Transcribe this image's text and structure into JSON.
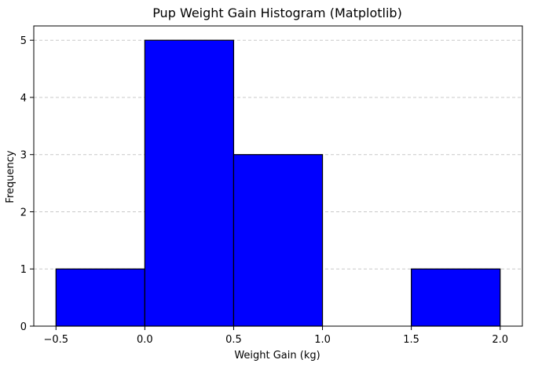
{
  "chart_data": {
    "type": "bar",
    "title": "Pup Weight Gain Histogram (Matplotlib)",
    "xlabel": "Weight Gain (kg)",
    "ylabel": "Frequency",
    "bins": [
      {
        "start": -0.5,
        "end": 0.0,
        "count": 1
      },
      {
        "start": 0.0,
        "end": 0.5,
        "count": 5
      },
      {
        "start": 0.5,
        "end": 1.0,
        "count": 3
      },
      {
        "start": 1.0,
        "end": 1.5,
        "count": 0
      },
      {
        "start": 1.5,
        "end": 2.0,
        "count": 1
      }
    ],
    "xlim": [
      -0.625,
      2.125
    ],
    "ylim": [
      0,
      5.25
    ],
    "xticks": [
      -0.5,
      0.0,
      0.5,
      1.0,
      1.5,
      2.0
    ],
    "xtick_labels": [
      "−0.5",
      "0.0",
      "0.5",
      "1.0",
      "1.5",
      "2.0"
    ],
    "yticks": [
      0,
      1,
      2,
      3,
      4,
      5
    ],
    "ytick_labels": [
      "0",
      "1",
      "2",
      "3",
      "4",
      "5"
    ],
    "grid": "y-dashed",
    "bar_color": "#0000ff",
    "edge_color": "#000000",
    "grid_color": "#c8c8c8"
  }
}
